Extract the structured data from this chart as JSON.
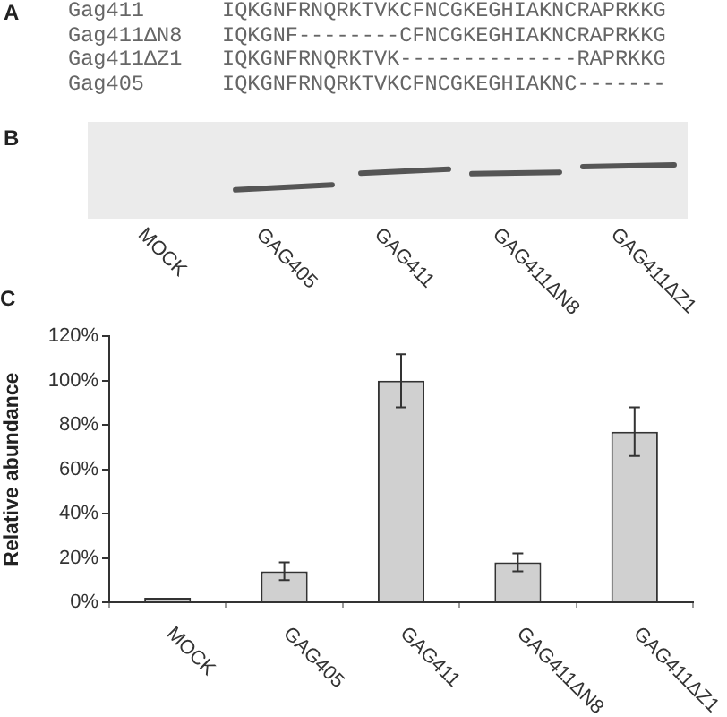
{
  "chart_data": [
    {
      "type": "other",
      "title": "A",
      "y_categories": [
        "Gag411",
        "Gag411ΔN8",
        "Gag411ΔZ1",
        "Gag405"
      ],
      "annotations": [
        "IQKGNFRNQRKTVKCFNCGKEGHIAKNCRAPRKKG",
        "IQKGNF--------CFNCGKEGHIAKNCRAPRKKG",
        "IQKGNFRNQRKTVK--------------RAPRKKG",
        "IQKGNFRNQRKTVKCFNCGKEGHIAKNC-------"
      ]
    },
    {
      "type": "other",
      "title": "B",
      "categories": [
        "MOCK",
        "GAG405",
        "GAG411",
        "GAG411ΔN8",
        "GAG411ΔZ1"
      ]
    },
    {
      "type": "bar",
      "title": "C",
      "ylabel": "Relative abundance",
      "categories": [
        "MOCK",
        "GAG405",
        "GAG411",
        "GAG411ΔN8",
        "GAG411ΔZ1"
      ],
      "values": [
        2,
        14,
        100,
        18,
        77
      ],
      "errors": [
        null,
        4,
        12,
        4,
        11
      ],
      "color": "#d0d0d0",
      "ylim": [
        0,
        120
      ],
      "yticks": [
        {
          "value": 0,
          "label": "0%"
        },
        {
          "value": 20,
          "label": "20%"
        },
        {
          "value": 40,
          "label": "40%"
        },
        {
          "value": 60,
          "label": "60%"
        },
        {
          "value": 80,
          "label": "80%"
        },
        {
          "value": 100,
          "label": "100%"
        },
        {
          "value": 120,
          "label": "120%"
        }
      ],
      "grid": false,
      "legend": false
    }
  ]
}
